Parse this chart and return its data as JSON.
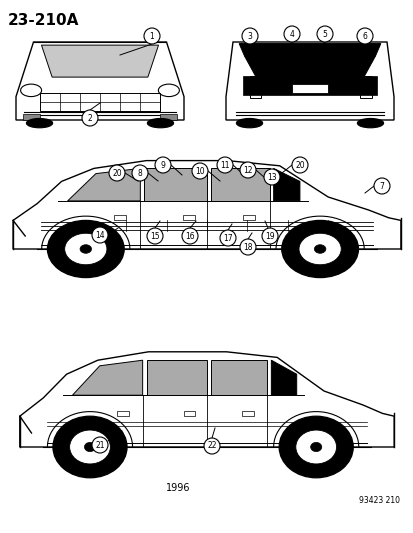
{
  "title": "23-210A",
  "year": "1996",
  "ref": "93423 210",
  "bg_color": "#ffffff",
  "fig_width": 4.14,
  "fig_height": 5.33,
  "dpi": 100
}
